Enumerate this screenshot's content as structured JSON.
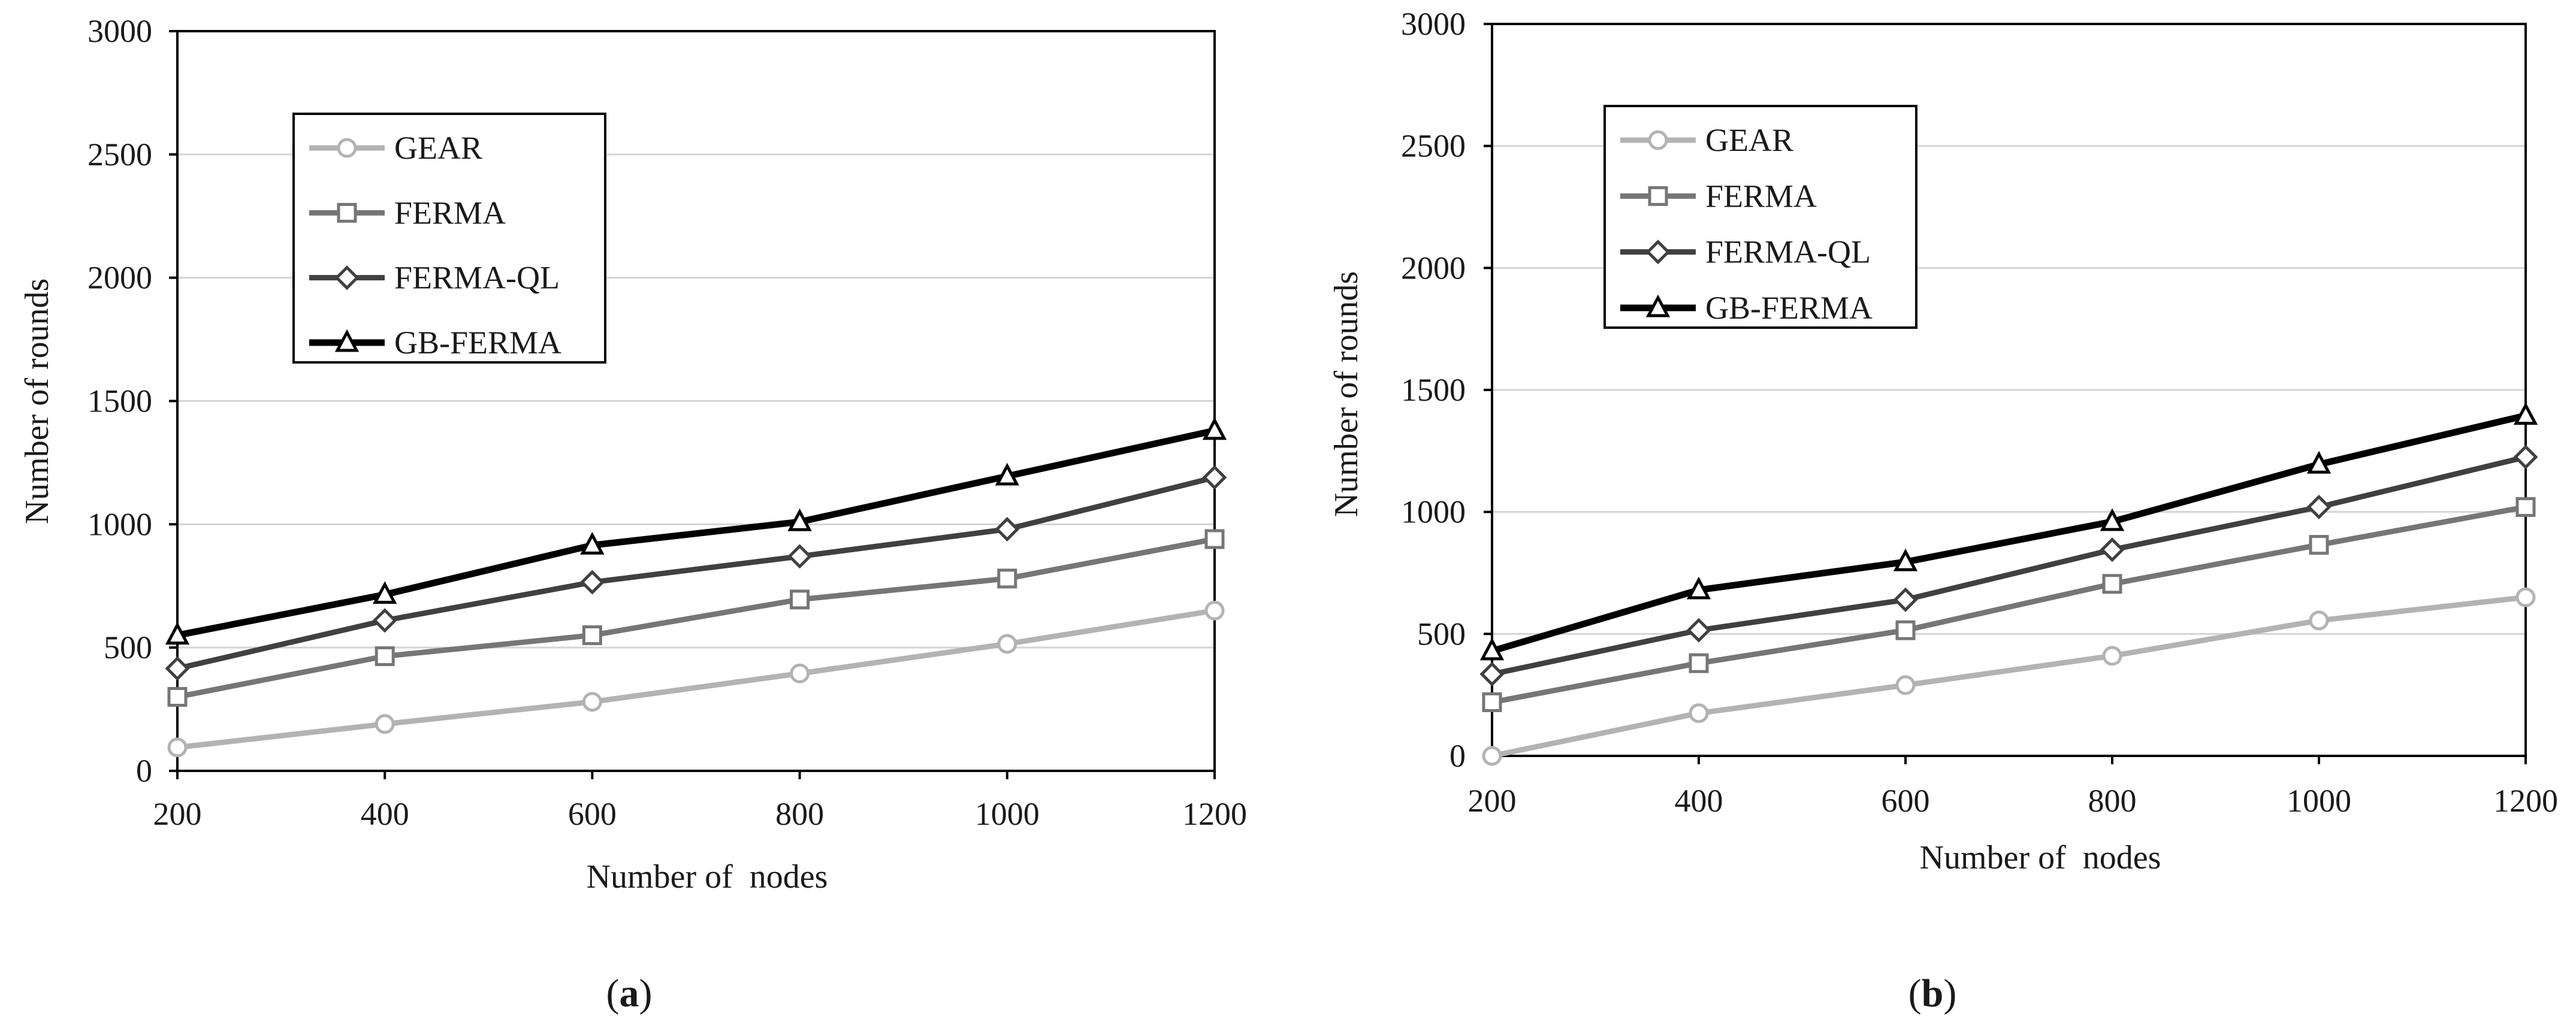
{
  "chart_data": [
    {
      "type": "line",
      "panel_label": "(a)",
      "xlabel": "Number of  nodes",
      "ylabel": "Number of rounds",
      "x": [
        200,
        400,
        600,
        800,
        1000,
        1200
      ],
      "x_ticks": [
        "200",
        "400",
        "600",
        "800",
        "1000",
        "1200"
      ],
      "y_ticks": [
        "0",
        "500",
        "1000",
        "1500",
        "2000",
        "2500",
        "3000"
      ],
      "xlim": [
        200,
        1200
      ],
      "ylim": [
        0,
        3000
      ],
      "grid": "horizontal",
      "legend_position": "top-left",
      "series": [
        {
          "name": "GEAR",
          "marker": "circle",
          "color": "#b3b3b3",
          "values": [
            95,
            190,
            280,
            395,
            515,
            650
          ]
        },
        {
          "name": "FERMA",
          "marker": "square",
          "color": "#767676",
          "values": [
            300,
            465,
            550,
            695,
            780,
            940
          ]
        },
        {
          "name": "FERMA-QL",
          "marker": "diamond",
          "color": "#404040",
          "values": [
            415,
            610,
            765,
            870,
            980,
            1190
          ]
        },
        {
          "name": "GB-FERMA",
          "marker": "triangle",
          "color": "#000000",
          "values": [
            550,
            715,
            915,
            1010,
            1195,
            1380
          ]
        }
      ]
    },
    {
      "type": "line",
      "panel_label": "(b)",
      "xlabel": "Number of  nodes",
      "ylabel": "Number of rounds",
      "x": [
        200,
        400,
        600,
        800,
        1000,
        1200
      ],
      "x_ticks": [
        "200",
        "400",
        "600",
        "800",
        "1000",
        "1200"
      ],
      "y_ticks": [
        "0",
        "500",
        "1000",
        "1500",
        "2000",
        "2500",
        "3000"
      ],
      "xlim": [
        200,
        1200
      ],
      "ylim": [
        0,
        3000
      ],
      "grid": "horizontal",
      "legend_position": "top-left",
      "series": [
        {
          "name": "GEAR",
          "marker": "circle",
          "color": "#b3b3b3",
          "values": [
            0,
            175,
            290,
            410,
            555,
            650
          ]
        },
        {
          "name": "FERMA",
          "marker": "square",
          "color": "#767676",
          "values": [
            220,
            380,
            515,
            705,
            865,
            1020
          ]
        },
        {
          "name": "FERMA-QL",
          "marker": "diamond",
          "color": "#404040",
          "values": [
            335,
            515,
            640,
            845,
            1020,
            1225
          ]
        },
        {
          "name": "GB-FERMA",
          "marker": "triangle",
          "color": "#000000",
          "values": [
            430,
            680,
            795,
            960,
            1195,
            1395
          ]
        }
      ]
    }
  ]
}
